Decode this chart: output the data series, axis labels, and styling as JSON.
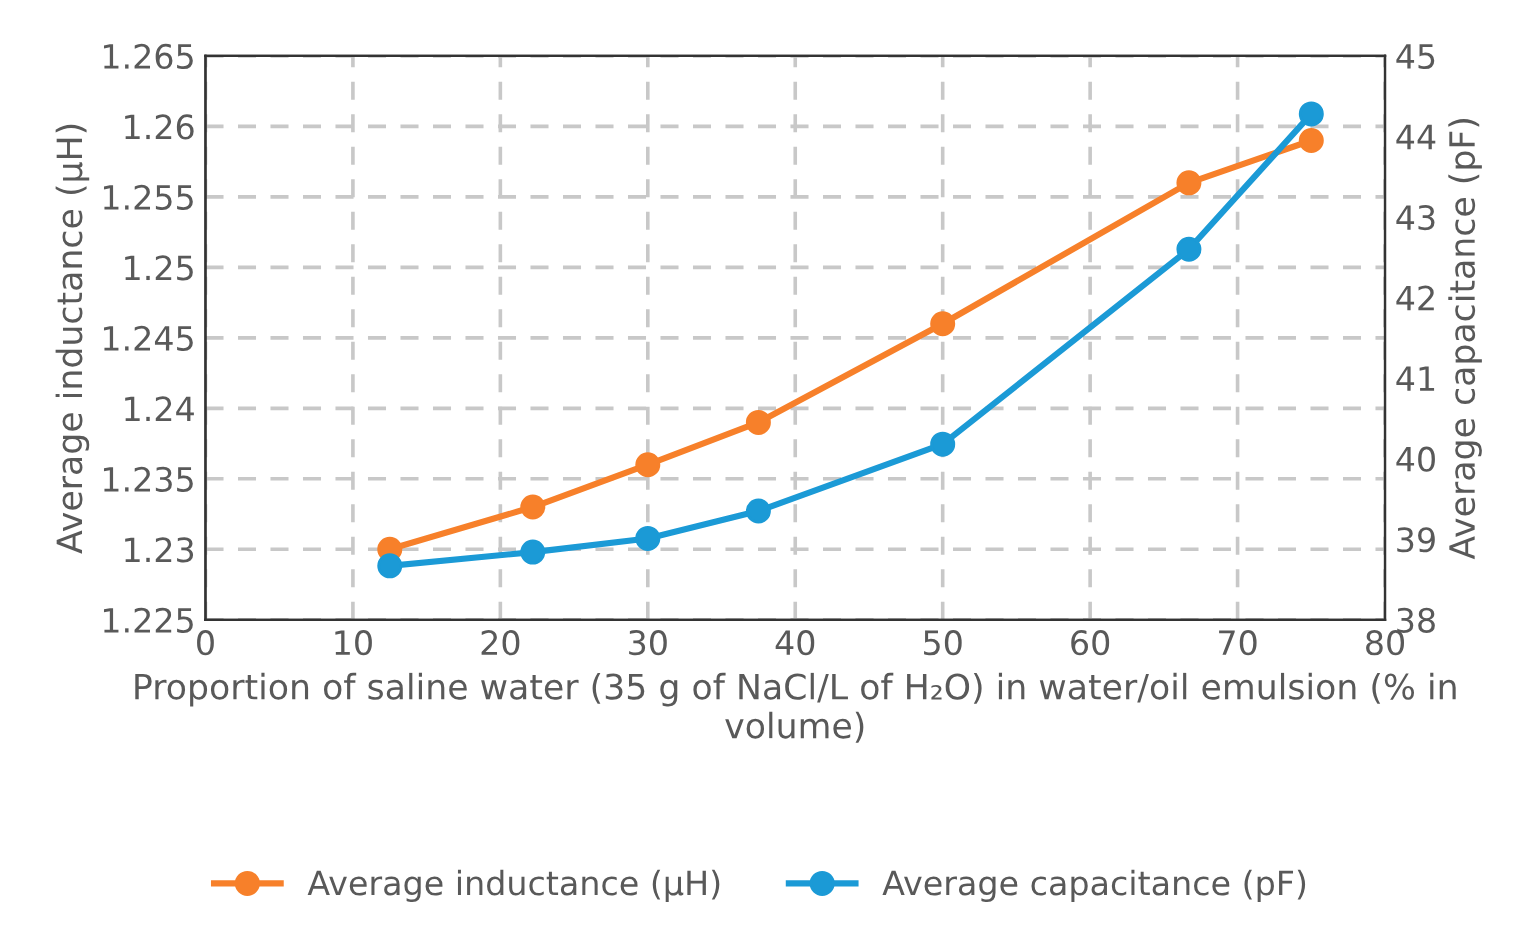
{
  "chart_data": {
    "type": "line",
    "xlabel": "Proportion of saline water (35 g of NaCl/L of H₂O) in water/oil emulsion (% in volume)",
    "ylabel": "Average inductance (µH)",
    "y2label": "Average capacitance (pF)",
    "x": [
      12.5,
      22.2,
      30,
      37.5,
      50,
      66.7,
      75
    ],
    "series": [
      {
        "name": "Average inductance (µH)",
        "color": "#f7802a",
        "values": [
          1.23,
          1.233,
          1.236,
          1.239,
          1.246,
          1.256,
          1.259
        ]
      },
      {
        "name": "Average capacitance (pF)",
        "color": "#1b9ad6",
        "axis": "y2",
        "values": [
          38.67,
          38.84,
          39.01,
          39.35,
          40.18,
          42.6,
          44.28
        ]
      }
    ],
    "xlim": [
      0,
      80
    ],
    "xticks": [
      0,
      10,
      20,
      30,
      40,
      50,
      60,
      70,
      80
    ],
    "ylim": [
      1.225,
      1.265
    ],
    "yticks": [
      {
        "value": 1.225,
        "label": "1.225"
      },
      {
        "value": 1.23,
        "label": "1.23"
      },
      {
        "value": 1.235,
        "label": "1.235"
      },
      {
        "value": 1.24,
        "label": "1.24"
      },
      {
        "value": 1.245,
        "label": "1.245"
      },
      {
        "value": 1.25,
        "label": "1.25"
      },
      {
        "value": 1.255,
        "label": "1.255"
      },
      {
        "value": 1.26,
        "label": "1.26"
      },
      {
        "value": 1.265,
        "label": "1.265"
      }
    ],
    "y2lim": [
      38,
      45
    ],
    "y2ticks": [
      38,
      39,
      40,
      41,
      42,
      43,
      44,
      45
    ],
    "grid": true,
    "legend": "bottom",
    "marker": "circle",
    "line_style": "solid"
  }
}
